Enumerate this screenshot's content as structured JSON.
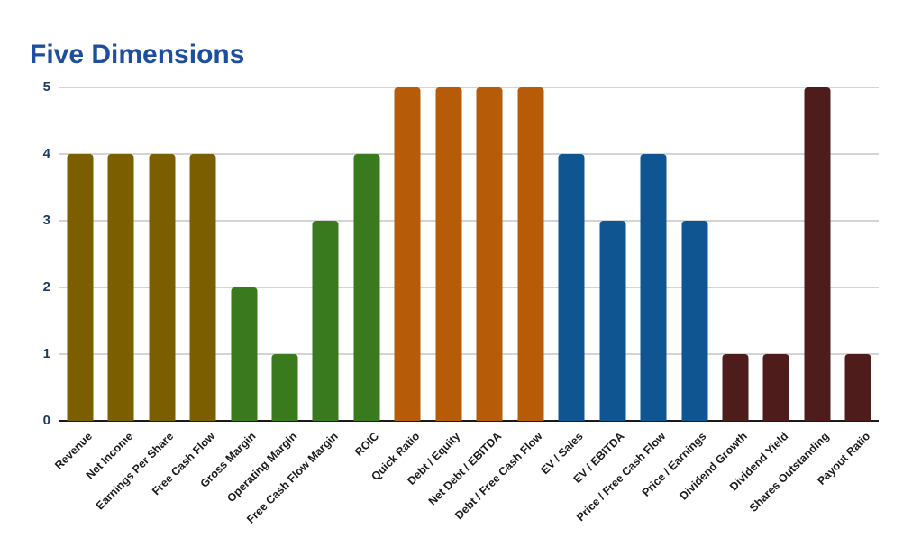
{
  "title": "Five Dimensions",
  "colors": {
    "title_text": "#1f4e9e",
    "ytick_text": "#1b3c64",
    "gridline": "#d4d4d4",
    "axis_line": "#1a1a1a",
    "olive": "#7a5e00",
    "green": "#3a7a1e",
    "orange": "#b65c09",
    "blue": "#0f5591",
    "maroon": "#4f1c1c"
  },
  "chart_data": {
    "type": "bar",
    "title": "Five Dimensions",
    "xlabel": "",
    "ylabel": "",
    "ylim": [
      0,
      5
    ],
    "yticks": [
      0,
      1,
      2,
      3,
      4,
      5
    ],
    "grid": true,
    "legend": false,
    "categories": [
      "Revenue",
      "Net Income",
      "Earnings Per Share",
      "Free Cash Flow",
      "Gross Margin",
      "Operating Margin",
      "Free Cash Flow Margin",
      "ROIC",
      "Quick Ratio",
      "Debt / Equity",
      "Net Debt / EBITDA",
      "Debt / Free Cash Flow",
      "EV / Sales",
      "EV / EBITDA",
      "Price / Free Cash Flow",
      "Price / Earnings",
      "Dividend Growth",
      "Dividend Yield",
      "Shares Outstanding",
      "Payout Ratio"
    ],
    "values": [
      4,
      4,
      4,
      4,
      2,
      1,
      3,
      4,
      5,
      5,
      5,
      5,
      4,
      3,
      4,
      3,
      1,
      1,
      5,
      1
    ],
    "bar_colors": [
      "#7a5e00",
      "#7a5e00",
      "#7a5e00",
      "#7a5e00",
      "#3a7a1e",
      "#3a7a1e",
      "#3a7a1e",
      "#3a7a1e",
      "#b65c09",
      "#b65c09",
      "#b65c09",
      "#b65c09",
      "#0f5591",
      "#0f5591",
      "#0f5591",
      "#0f5591",
      "#4f1c1c",
      "#4f1c1c",
      "#4f1c1c",
      "#4f1c1c"
    ],
    "groups": [
      {
        "color": "#7a5e00",
        "members": [
          "Revenue",
          "Net Income",
          "Earnings Per Share",
          "Free Cash Flow"
        ]
      },
      {
        "color": "#3a7a1e",
        "members": [
          "Gross Margin",
          "Operating Margin",
          "Free Cash Flow Margin",
          "ROIC"
        ]
      },
      {
        "color": "#b65c09",
        "members": [
          "Quick Ratio",
          "Debt / Equity",
          "Net Debt / EBITDA",
          "Debt / Free Cash Flow"
        ]
      },
      {
        "color": "#0f5591",
        "members": [
          "EV / Sales",
          "EV / EBITDA",
          "Price / Free Cash Flow",
          "Price / Earnings"
        ]
      },
      {
        "color": "#4f1c1c",
        "members": [
          "Dividend Growth",
          "Dividend Yield",
          "Shares Outstanding",
          "Payout Ratio"
        ]
      }
    ]
  }
}
